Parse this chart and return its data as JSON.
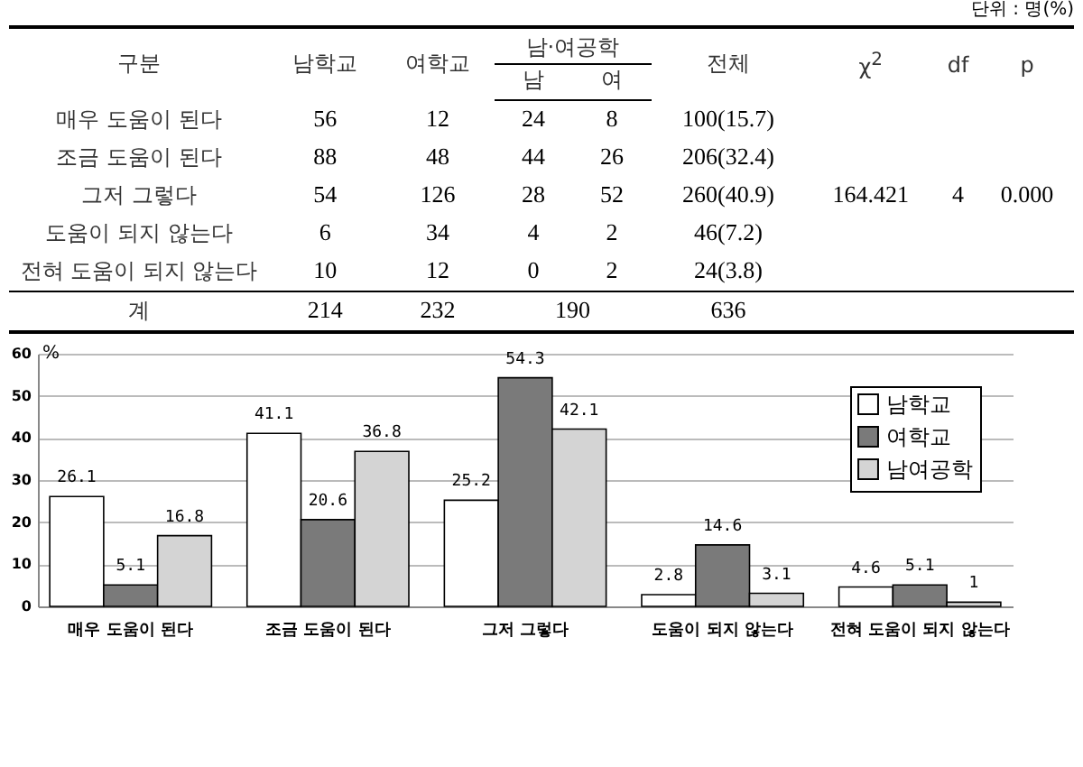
{
  "chart_data": [
    {
      "type": "other",
      "annotations": [
        "단위 : 명(%)",
        "남·여공학"
      ],
      "categories": [
        "구분",
        "남학교",
        "여학교",
        "남",
        "여",
        "전체",
        "χ$^{2}$",
        "df",
        "p"
      ],
      "y_categories": [
        "매우 도움이 된다",
        "조금 도움이 된다",
        "그저 그렇다",
        "도움이 되지 않는다",
        "전혀 도움이 되지 않는다",
        "계"
      ],
      "cell_labels": [
        [
          "56",
          "12",
          "24",
          "8",
          "100(15.7)",
          null,
          null,
          null
        ],
        [
          "88",
          "48",
          "44",
          "26",
          "206(32.4)",
          null,
          null,
          null
        ],
        [
          "54",
          "126",
          "28",
          "52",
          "260(40.9)",
          "164.421",
          "4",
          "0.000"
        ],
        [
          "6",
          "34",
          "4",
          "2",
          "46(7.2)",
          null,
          null,
          null
        ],
        [
          "10",
          "12",
          "0",
          "2",
          "24(3.8)",
          null,
          null,
          null
        ],
        [
          "214",
          "232",
          "190",
          null,
          "636",
          null,
          null,
          null
        ]
      ]
    },
    {
      "type": "bar",
      "ylabel": "%",
      "categories": [
        "매우 도움이 된다",
        "조금 도움이 된다",
        "그저 그렇다",
        "도움이 되지 않는다",
        "전혀 도움이 되지 않는다"
      ],
      "series": [
        {
          "name": "남학교",
          "color": "#ffffff",
          "values": [
            26.1,
            41.1,
            25.2,
            2.8,
            4.6
          ]
        },
        {
          "name": "여학교",
          "color": "#7a7a7a",
          "values": [
            5.1,
            20.6,
            54.3,
            14.6,
            5.1
          ]
        },
        {
          "name": "남여공학",
          "color": "#d4d4d4",
          "values": [
            16.8,
            36.8,
            42.1,
            3.1,
            1
          ]
        }
      ],
      "ylim": [
        0,
        60
      ],
      "yticks": [
        0,
        10,
        20,
        30,
        40,
        50,
        60
      ],
      "grid": "y",
      "legend": "top right",
      "data_labels": true
    }
  ]
}
